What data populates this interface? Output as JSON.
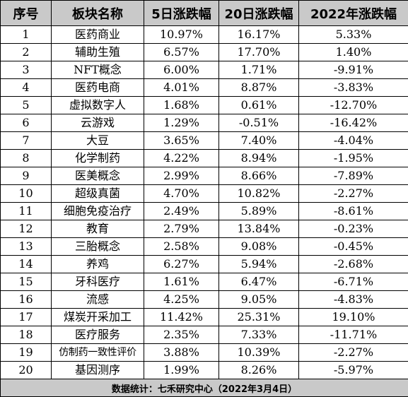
{
  "headers": [
    "序号",
    "板块名称",
    "5日涨跌幅",
    "20日涨跌幅",
    "2022年涨跌幅"
  ],
  "rows": [
    [
      "1",
      "医药商业",
      "10.97%",
      "16.17%",
      "5.33%"
    ],
    [
      "2",
      "辅助生殖",
      "6.57%",
      "17.70%",
      "1.40%"
    ],
    [
      "3",
      "NFT概念",
      "6.00%",
      "1.71%",
      "-9.91%"
    ],
    [
      "4",
      "医药电商",
      "4.01%",
      "8.87%",
      "-3.83%"
    ],
    [
      "5",
      "虚拟数字人",
      "1.68%",
      "0.61%",
      "-12.70%"
    ],
    [
      "6",
      "云游戏",
      "1.29%",
      "-0.51%",
      "-16.42%"
    ],
    [
      "7",
      "大豆",
      "3.65%",
      "7.40%",
      "-4.04%"
    ],
    [
      "8",
      "化学制药",
      "4.22%",
      "8.94%",
      "-1.95%"
    ],
    [
      "9",
      "医美概念",
      "2.99%",
      "8.66%",
      "-7.89%"
    ],
    [
      "10",
      "超级真菌",
      "4.70%",
      "10.82%",
      "-2.27%"
    ],
    [
      "11",
      "细胞免疫治疗",
      "2.49%",
      "5.89%",
      "-8.61%"
    ],
    [
      "12",
      "教育",
      "2.79%",
      "13.84%",
      "-0.23%"
    ],
    [
      "13",
      "三胎概念",
      "2.58%",
      "9.08%",
      "-0.45%"
    ],
    [
      "14",
      "养鸡",
      "6.27%",
      "5.94%",
      "-2.68%"
    ],
    [
      "15",
      "牙科医疗",
      "1.61%",
      "6.47%",
      "-6.71%"
    ],
    [
      "16",
      "流感",
      "4.25%",
      "9.05%",
      "-4.83%"
    ],
    [
      "17",
      "煤炭开采加工",
      "11.42%",
      "25.31%",
      "19.10%"
    ],
    [
      "18",
      "医疗服务",
      "2.35%",
      "7.33%",
      "-11.71%"
    ],
    [
      "19",
      "仿制药一致性评价",
      "3.88%",
      "10.39%",
      "-2.27%"
    ],
    [
      "20",
      "基因测序",
      "1.99%",
      "8.26%",
      "-5.97%"
    ]
  ],
  "footer": "数据统计：七禾研究中心（2022年3月4日）"
}
